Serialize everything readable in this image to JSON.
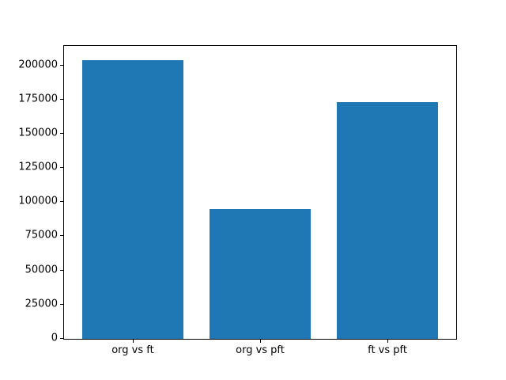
{
  "chart_data": {
    "type": "bar",
    "categories": [
      "org vs ft",
      "org vs pft",
      "ft vs pft"
    ],
    "values": [
      204000,
      95000,
      173000
    ],
    "title": "",
    "xlabel": "",
    "ylabel": "",
    "ylim": [
      0,
      214200
    ],
    "yticks": [
      0,
      25000,
      50000,
      75000,
      100000,
      125000,
      150000,
      175000,
      200000
    ],
    "bar_color": "#1f77b4",
    "axes_color": "#000000",
    "background_color": "#ffffff",
    "grid": false,
    "legend_position": "none"
  }
}
